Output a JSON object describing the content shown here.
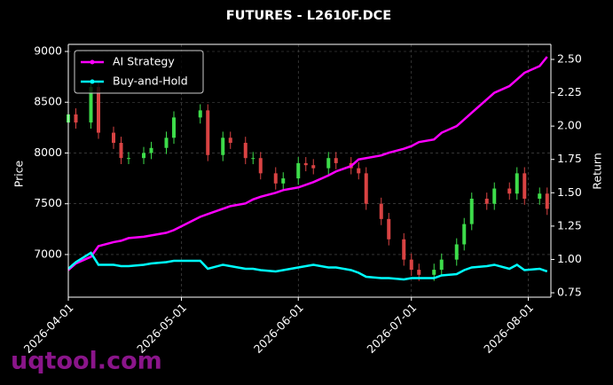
{
  "chart_data": {
    "type": "candlestick",
    "title": "FUTURES - L2610F.DCE",
    "ylabel": "Price",
    "y2label": "Return",
    "watermark": "uqtool.com",
    "x": [
      "2026-04-01",
      "2026-04-03",
      "2026-04-07",
      "2026-04-09",
      "2026-04-13",
      "2026-04-15",
      "2026-04-17",
      "2026-04-21",
      "2026-04-23",
      "2026-04-27",
      "2026-04-29",
      "2026-05-06",
      "2026-05-08",
      "2026-05-12",
      "2026-05-14",
      "2026-05-18",
      "2026-05-20",
      "2026-05-22",
      "2026-05-26",
      "2026-05-28",
      "2026-06-01",
      "2026-06-03",
      "2026-06-05",
      "2026-06-09",
      "2026-06-11",
      "2026-06-15",
      "2026-06-17",
      "2026-06-19",
      "2026-06-23",
      "2026-06-25",
      "2026-06-29",
      "2026-07-01",
      "2026-07-03",
      "2026-07-07",
      "2026-07-09",
      "2026-07-13",
      "2026-07-15",
      "2026-07-17",
      "2026-07-21",
      "2026-07-23",
      "2026-07-27",
      "2026-07-29",
      "2026-07-31",
      "2026-08-04",
      "2026-08-06"
    ],
    "open": [
      8300,
      8380,
      8300,
      8650,
      8200,
      8100,
      7950,
      7950,
      8000,
      8050,
      8150,
      8350,
      8420,
      7980,
      8150,
      8100,
      7950,
      7950,
      7800,
      7700,
      7750,
      7900,
      7880,
      7850,
      7950,
      7900,
      7850,
      7800,
      7500,
      7350,
      7150,
      6950,
      6850,
      6800,
      6850,
      6950,
      7100,
      7300,
      7550,
      7500,
      7650,
      7600,
      7800,
      7550,
      7600
    ],
    "high": [
      8440,
      8440,
      8710,
      8710,
      8260,
      8160,
      8010,
      8060,
      8110,
      8210,
      8410,
      8480,
      8480,
      8210,
      8210,
      8160,
      8010,
      8010,
      7860,
      7810,
      7960,
      7960,
      7940,
      8010,
      8010,
      7960,
      7910,
      7860,
      7560,
      7410,
      7210,
      7010,
      6910,
      6910,
      7010,
      7160,
      7360,
      7610,
      7610,
      7710,
      7710,
      7860,
      7860,
      7660,
      7660
    ],
    "low": [
      8240,
      8240,
      8240,
      8140,
      8040,
      7890,
      7890,
      7890,
      7940,
      7990,
      8090,
      8290,
      7920,
      7920,
      8040,
      7890,
      7890,
      7740,
      7640,
      7640,
      7690,
      7820,
      7790,
      7790,
      7840,
      7790,
      7740,
      7440,
      7290,
      7090,
      6890,
      6790,
      6740,
      6740,
      6790,
      6890,
      7040,
      7240,
      7440,
      7440,
      7540,
      7540,
      7490,
      7490,
      7390
    ],
    "close": [
      8380,
      8300,
      8650,
      8200,
      8100,
      7950,
      7950,
      8000,
      8050,
      8150,
      8350,
      8420,
      7980,
      8150,
      8100,
      7950,
      7950,
      7800,
      7700,
      7750,
      7900,
      7880,
      7850,
      7950,
      7900,
      7850,
      7800,
      7500,
      7350,
      7150,
      6950,
      6850,
      6800,
      6850,
      6950,
      7100,
      7300,
      7550,
      7500,
      7650,
      7600,
      7800,
      7550,
      7600,
      7450
    ],
    "up_color": "#3ddc4a",
    "down_color": "#d94343",
    "series": [
      {
        "name": "AI Strategy",
        "color": "#ff00ff",
        "axis": "y2",
        "values": [
          0.92,
          0.97,
          1.02,
          1.1,
          1.13,
          1.14,
          1.16,
          1.17,
          1.18,
          1.2,
          1.22,
          1.32,
          1.34,
          1.38,
          1.4,
          1.42,
          1.45,
          1.47,
          1.5,
          1.52,
          1.54,
          1.56,
          1.58,
          1.63,
          1.66,
          1.7,
          1.75,
          1.76,
          1.78,
          1.8,
          1.83,
          1.85,
          1.88,
          1.9,
          1.95,
          2.0,
          2.05,
          2.1,
          2.2,
          2.25,
          2.3,
          2.35,
          2.4,
          2.45,
          2.52
        ]
      },
      {
        "name": "Buy-and-Hold",
        "color": "#00ffff",
        "axis": "y2",
        "values": [
          0.93,
          0.98,
          1.05,
          0.96,
          0.96,
          0.95,
          0.95,
          0.96,
          0.97,
          0.98,
          0.99,
          0.99,
          0.93,
          0.96,
          0.95,
          0.93,
          0.93,
          0.92,
          0.91,
          0.92,
          0.94,
          0.95,
          0.96,
          0.94,
          0.94,
          0.92,
          0.9,
          0.87,
          0.86,
          0.86,
          0.85,
          0.86,
          0.86,
          0.86,
          0.88,
          0.89,
          0.92,
          0.94,
          0.95,
          0.96,
          0.93,
          0.96,
          0.92,
          0.93,
          0.91
        ]
      }
    ],
    "xlim": [
      "2026-04-01",
      "2026-08-07"
    ],
    "xticks": [
      "2026-04-01",
      "2026-05-01",
      "2026-06-01",
      "2026-07-01",
      "2026-08-01"
    ],
    "ylim": [
      6580,
      9070
    ],
    "yticks": [
      7000,
      7500,
      8000,
      8500,
      9000
    ],
    "y2lim": [
      0.717,
      2.613
    ],
    "y2ticks": [
      0.75,
      {
        "value": 1,
        "label": "1.00"
      },
      1.25,
      {
        "value": 1.5,
        "label": "1.50"
      },
      1.75,
      {
        "value": 2,
        "label": "2.00"
      },
      2.25,
      {
        "value": 2.5,
        "label": "2.50"
      }
    ],
    "grid": true,
    "legend": "upper left"
  }
}
